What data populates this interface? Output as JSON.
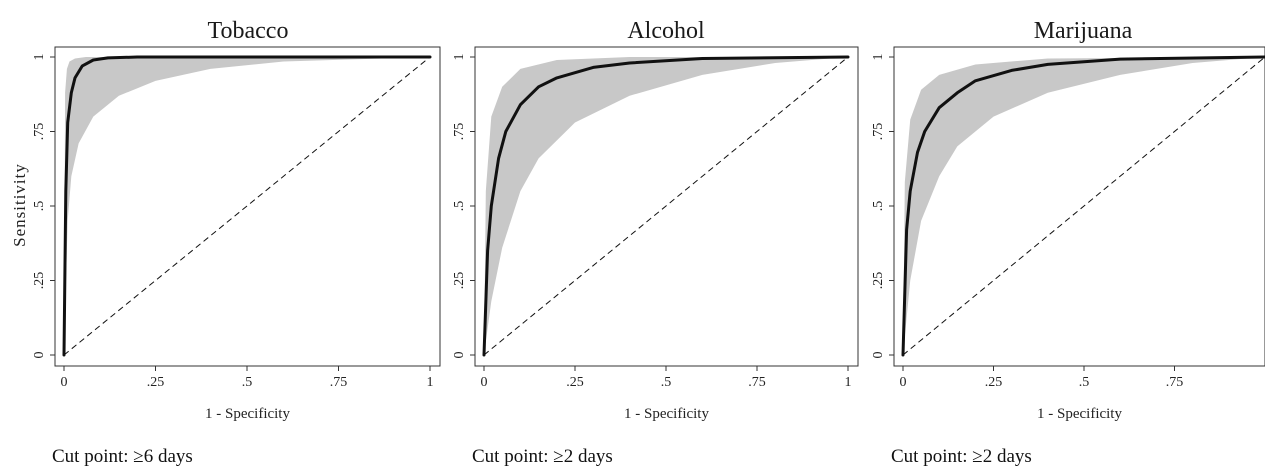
{
  "figure": {
    "ylabel": "Sensitivity"
  },
  "chart_data": [
    {
      "type": "line",
      "title": "Tobacco",
      "xlabel": "1 - Specificity",
      "xlim": [
        0,
        1
      ],
      "ylim": [
        0,
        1
      ],
      "xticks": [
        "0",
        ".25",
        ".5",
        ".75",
        "1"
      ],
      "yticks": [
        "0",
        ".25",
        ".5",
        ".75",
        "1"
      ],
      "annotation": "Cut point: ≥6 days",
      "roc_fit": {
        "x": [
          0,
          0.005,
          0.01,
          0.02,
          0.03,
          0.05,
          0.08,
          0.12,
          0.2,
          0.4,
          1.0
        ],
        "y": [
          0,
          0.55,
          0.78,
          0.88,
          0.93,
          0.97,
          0.99,
          0.997,
          1.0,
          1.0,
          1.0
        ]
      },
      "ci_upper": {
        "x": [
          0,
          0.003,
          0.008,
          0.015,
          0.03,
          0.06,
          0.12,
          1.0
        ],
        "y": [
          0,
          0.88,
          0.96,
          0.985,
          0.995,
          1.0,
          1.0,
          1.0
        ]
      },
      "ci_lower": {
        "x": [
          0,
          0.01,
          0.02,
          0.04,
          0.08,
          0.15,
          0.25,
          0.4,
          0.6,
          1.0
        ],
        "y": [
          0,
          0.45,
          0.6,
          0.71,
          0.8,
          0.87,
          0.92,
          0.96,
          0.985,
          1.0
        ]
      },
      "reference_line": {
        "x": [
          0,
          1
        ],
        "y": [
          0,
          1
        ]
      }
    },
    {
      "type": "line",
      "title": "Alcohol",
      "xlabel": "1 - Specificity",
      "xlim": [
        0,
        1
      ],
      "ylim": [
        0,
        1
      ],
      "xticks": [
        "0",
        ".25",
        ".5",
        ".75",
        "1"
      ],
      "yticks": [
        "0",
        ".25",
        ".5",
        ".75",
        "1"
      ],
      "annotation": "Cut point: ≥2 days",
      "roc_fit": {
        "x": [
          0,
          0.01,
          0.02,
          0.04,
          0.06,
          0.1,
          0.15,
          0.2,
          0.3,
          0.4,
          0.6,
          1.0
        ],
        "y": [
          0,
          0.35,
          0.5,
          0.66,
          0.75,
          0.84,
          0.9,
          0.93,
          0.965,
          0.98,
          0.995,
          1.0
        ]
      },
      "ci_upper": {
        "x": [
          0,
          0.005,
          0.02,
          0.05,
          0.1,
          0.2,
          0.4,
          1.0
        ],
        "y": [
          0,
          0.55,
          0.8,
          0.9,
          0.96,
          0.99,
          1.0,
          1.0
        ]
      },
      "ci_lower": {
        "x": [
          0,
          0.02,
          0.05,
          0.1,
          0.15,
          0.25,
          0.4,
          0.6,
          0.8,
          1.0
        ],
        "y": [
          0,
          0.18,
          0.36,
          0.55,
          0.66,
          0.78,
          0.87,
          0.94,
          0.98,
          1.0
        ]
      },
      "reference_line": {
        "x": [
          0,
          1
        ],
        "y": [
          0,
          1
        ]
      }
    },
    {
      "type": "line",
      "title": "Marijuana",
      "xlabel": "1 - Specificity",
      "xlim": [
        0,
        1
      ],
      "ylim": [
        0,
        1
      ],
      "xticks": [
        "0",
        ".25",
        ".5",
        ".75"
      ],
      "yticks": [
        "0",
        ".25",
        ".5",
        ".75",
        "1"
      ],
      "annotation": "Cut point: ≥2 days",
      "roc_fit": {
        "x": [
          0,
          0.01,
          0.02,
          0.04,
          0.06,
          0.1,
          0.15,
          0.2,
          0.3,
          0.4,
          0.6,
          1.0
        ],
        "y": [
          0,
          0.42,
          0.55,
          0.68,
          0.75,
          0.83,
          0.88,
          0.92,
          0.955,
          0.975,
          0.993,
          1.0
        ]
      },
      "ci_upper": {
        "x": [
          0,
          0.005,
          0.02,
          0.05,
          0.1,
          0.2,
          0.4,
          1.0
        ],
        "y": [
          0,
          0.58,
          0.79,
          0.89,
          0.94,
          0.975,
          0.995,
          1.0
        ]
      },
      "ci_lower": {
        "x": [
          0,
          0.02,
          0.05,
          0.1,
          0.15,
          0.25,
          0.4,
          0.6,
          0.8,
          1.0
        ],
        "y": [
          0,
          0.25,
          0.45,
          0.6,
          0.7,
          0.8,
          0.88,
          0.94,
          0.98,
          1.0
        ]
      },
      "reference_line": {
        "x": [
          0,
          1
        ],
        "y": [
          0,
          1
        ]
      }
    }
  ]
}
